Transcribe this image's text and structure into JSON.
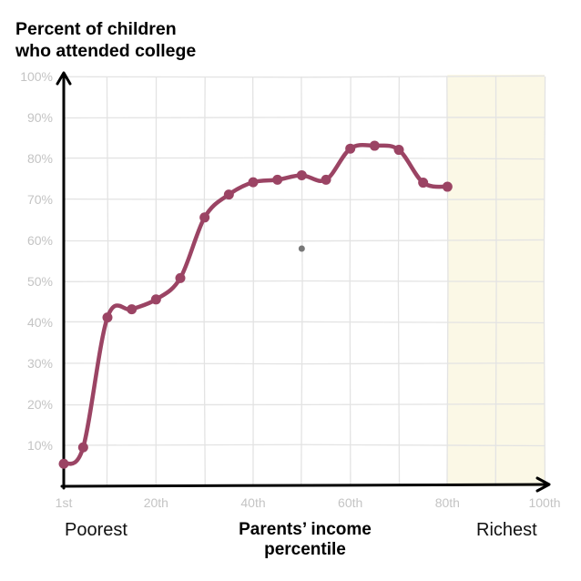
{
  "chart_data": {
    "type": "line",
    "title_lines": [
      "Percent of children",
      "who attended college"
    ],
    "xlabel_lines": [
      "Parents’ income",
      "percentile"
    ],
    "left_label": "Poorest",
    "right_label": "Richest",
    "xlim": [
      1,
      100
    ],
    "ylim": [
      0,
      100
    ],
    "x_ticks": [
      {
        "value": 1,
        "label": "1st"
      },
      {
        "value": 20,
        "label": "20th"
      },
      {
        "value": 40,
        "label": "40th"
      },
      {
        "value": 60,
        "label": "60th"
      },
      {
        "value": 80,
        "label": "80th"
      },
      {
        "value": 100,
        "label": "100th"
      }
    ],
    "y_ticks": [
      {
        "value": 10,
        "label": "10%"
      },
      {
        "value": 20,
        "label": "20%"
      },
      {
        "value": 30,
        "label": "30%"
      },
      {
        "value": 40,
        "label": "40%"
      },
      {
        "value": 50,
        "label": "50%"
      },
      {
        "value": 60,
        "label": "60%"
      },
      {
        "value": 70,
        "label": "70%"
      },
      {
        "value": 80,
        "label": "80%"
      },
      {
        "value": 90,
        "label": "90%"
      },
      {
        "value": 100,
        "label": "100%"
      }
    ],
    "grid": true,
    "shaded_region": {
      "x_from": 80,
      "x_to": 100,
      "color": "#fbf8e6"
    },
    "series": [
      {
        "color": "#9b4464",
        "points": [
          {
            "x": 1,
            "y": 5.5
          },
          {
            "x": 5,
            "y": 9.5
          },
          {
            "x": 10,
            "y": 41.2
          },
          {
            "x": 15,
            "y": 43.2
          },
          {
            "x": 20,
            "y": 45.6
          },
          {
            "x": 25,
            "y": 50.8
          },
          {
            "x": 30,
            "y": 65.6
          },
          {
            "x": 35,
            "y": 71.2
          },
          {
            "x": 40,
            "y": 74.2
          },
          {
            "x": 45,
            "y": 74.8
          },
          {
            "x": 50,
            "y": 75.9
          },
          {
            "x": 55,
            "y": 74.8
          },
          {
            "x": 60,
            "y": 82.4
          },
          {
            "x": 65,
            "y": 83.1
          },
          {
            "x": 70,
            "y": 82.1
          },
          {
            "x": 75,
            "y": 74.1
          },
          {
            "x": 80,
            "y": 73.1
          }
        ]
      }
    ],
    "annotations": [
      {
        "type": "marker",
        "x": 50,
        "y": 58,
        "color": "#777777"
      }
    ]
  }
}
